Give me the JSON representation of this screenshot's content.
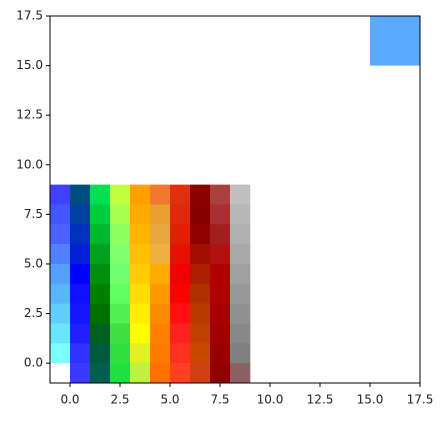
{
  "chart_data": {
    "type": "image",
    "xlim": [
      -1,
      17.5
    ],
    "ylim": [
      -1,
      17.5
    ],
    "xticks": [
      {
        "value": 0,
        "label": "0.0"
      },
      {
        "value": 2.5,
        "label": "2.5"
      },
      {
        "value": 5,
        "label": "5.0"
      },
      {
        "value": 7.5,
        "label": "7.5"
      },
      {
        "value": 10,
        "label": "10.0"
      },
      {
        "value": 12.5,
        "label": "12.5"
      },
      {
        "value": 15,
        "label": "15.0"
      },
      {
        "value": 17.5,
        "label": "17.5"
      }
    ],
    "yticks": [
      {
        "value": 0,
        "label": "0.0"
      },
      {
        "value": 2.5,
        "label": "2.5"
      },
      {
        "value": 5,
        "label": "5.0"
      },
      {
        "value": 7.5,
        "label": "7.5"
      },
      {
        "value": 10,
        "label": "10.0"
      },
      {
        "value": 12.5,
        "label": "12.5"
      },
      {
        "value": 15,
        "label": "15.0"
      },
      {
        "value": 17.5,
        "label": "17.5"
      }
    ],
    "extent": [
      -1,
      9,
      -1,
      9
    ],
    "cells": [
      [
        "#4040ff",
        "#004d80",
        "#00e050",
        "#c0ff40",
        "#ffa000",
        "#f07830",
        "#e03010",
        "#8b0000",
        "#a84040",
        "#c0c0c0"
      ],
      [
        "#4455ff",
        "#0040a0",
        "#00cc40",
        "#a8ff50",
        "#ffaa00",
        "#e8a030",
        "#e02810",
        "#880000",
        "#a83030",
        "#b8b8b8"
      ],
      [
        "#4a62ff",
        "#0030c0",
        "#00b830",
        "#90ff60",
        "#ffb400",
        "#e8a840",
        "#e02000",
        "#900000",
        "#a02020",
        "#b0b0b0"
      ],
      [
        "#5080ff",
        "#0020d8",
        "#00a020",
        "#80ff70",
        "#ffc000",
        "#f0b040",
        "#e81000",
        "#a01000",
        "#b01010",
        "#a8a8a8"
      ],
      [
        "#55a0ff",
        "#0000ff",
        "#009010",
        "#70ff70",
        "#ffcc00",
        "#ffaa00",
        "#f00000",
        "#a82000",
        "#b00000",
        "#a0a0a0"
      ],
      [
        "#5ab5ff",
        "#1010ff",
        "#008000",
        "#60ff60",
        "#ffdd00",
        "#ff9900",
        "#ff0000",
        "#b03000",
        "#b00000",
        "#989898"
      ],
      [
        "#60cfff",
        "#1515ff",
        "#007000",
        "#50f050",
        "#ffee00",
        "#ff8c00",
        "#ff1010",
        "#b83a00",
        "#a80000",
        "#909090"
      ],
      [
        "#6ae5ff",
        "#2020ff",
        "#006020",
        "#40e040",
        "#ffff00",
        "#ff8000",
        "#ff2020",
        "#c04000",
        "#a00000",
        "#888888"
      ],
      [
        "#7affff",
        "#3030ff",
        "#005a40",
        "#30e040",
        "#e0f020",
        "#ff7a00",
        "#ff3020",
        "#c84800",
        "#980000",
        "#808080"
      ],
      [
        "#ffffff",
        "#3a3aff",
        "#006050",
        "#20e040",
        "#c0f040",
        "#ff7000",
        "#ff4020",
        "#d04010",
        "#900000",
        "#8a6060"
      ]
    ],
    "patch": {
      "extent": [
        15,
        17.5,
        15,
        17.5
      ],
      "color": "#5aabff"
    }
  }
}
